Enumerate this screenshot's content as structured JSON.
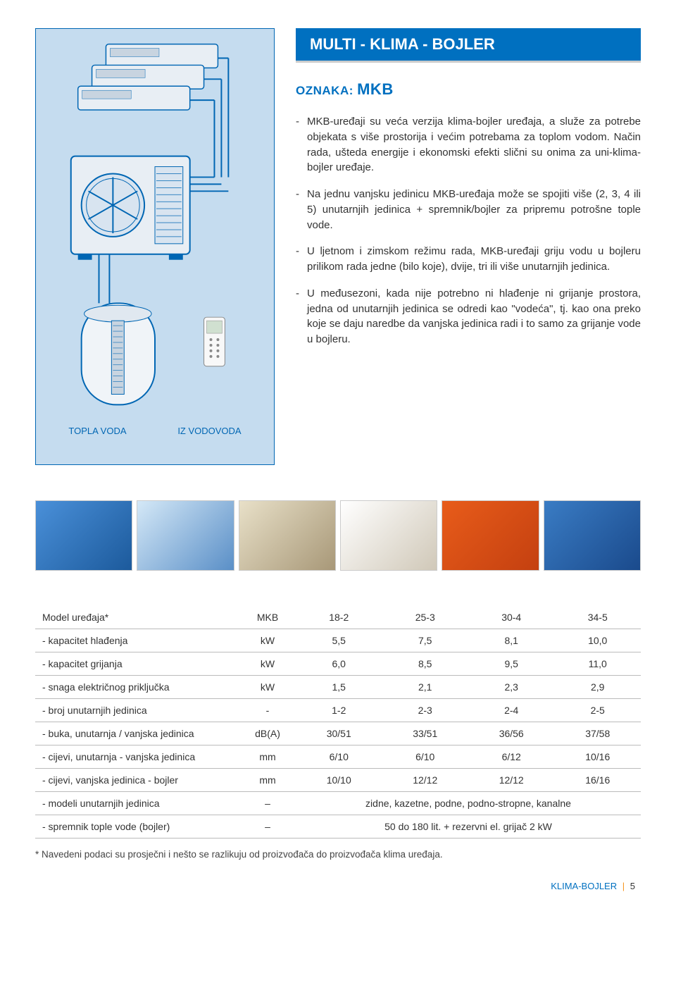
{
  "title_banner": "MULTI - KLIMA - BOJLER",
  "subtitle_prefix": "OZNAKA: ",
  "subtitle_code": "MKB",
  "bullets": [
    "MKB-uređaji su veća verzija klima-bojler uređaja, a služe za potrebe objekata s više prostorija i većim potrebama za toplom vodom. Način rada, ušteda energije i ekonomski efekti slični su onima za uni-klima-bojler uređaje.",
    "Na jednu vanjsku jedinicu MKB-uređaja može se spojiti više (2, 3, 4 ili 5) unutarnjih jedinica + spremnik/bojler za pripremu potrošne tople vode.",
    "U ljetnom i zimskom režimu rada, MKB-uređaji griju vodu u bojleru prilikom rada jedne (bilo koje), dvije, tri ili više unutarnjih jedinica.",
    "U međusezoni, kada nije potrebno ni hlađenje ni grijanje prostora, jedna od unutarnjih jedinica se odredi kao \"vodeća\", tj. kao ona preko koje se daju naredbe da vanjska jedinica radi i to samo za grijanje vode u bojleru."
  ],
  "diagram_labels": {
    "left": "TOPLA VODA",
    "right": "IZ VODOVODA"
  },
  "diagram_colors": {
    "bg": "#c5dcef",
    "border": "#0066b3",
    "unit_fill": "#e8eef4",
    "unit_stroke": "#0066b3",
    "pipe": "#0066b3"
  },
  "strip_images": [
    {
      "bg1": "#4a90d9",
      "bg2": "#1c5a9c"
    },
    {
      "bg1": "#d4e8f7",
      "bg2": "#5a8fc7"
    },
    {
      "bg1": "#e8e0c8",
      "bg2": "#a89878"
    },
    {
      "bg1": "#ffffff",
      "bg2": "#d0c8b8"
    },
    {
      "bg1": "#e85c1a",
      "bg2": "#c44010"
    },
    {
      "bg1": "#3a7cc4",
      "bg2": "#1a4a8c"
    }
  ],
  "table": {
    "header": [
      "Model uređaja*",
      "MKB",
      "18-2",
      "25-3",
      "30-4",
      "34-5"
    ],
    "rows": [
      [
        "- kapacitet hlađenja",
        "kW",
        "5,5",
        "7,5",
        "8,1",
        "10,0"
      ],
      [
        "- kapacitet grijanja",
        "kW",
        "6,0",
        "8,5",
        "9,5",
        "11,0"
      ],
      [
        "- snaga električnog priključka",
        "kW",
        "1,5",
        "2,1",
        "2,3",
        "2,9"
      ],
      [
        "- broj unutarnjih jedinica",
        "-",
        "1-2",
        "2-3",
        "2-4",
        "2-5"
      ],
      [
        "- buka, unutarnja / vanjska jedinica",
        "dB(A)",
        "30/51",
        "33/51",
        "36/56",
        "37/58"
      ],
      [
        "- cijevi, unutarnja - vanjska jedinica",
        "mm",
        "6/10",
        "6/10",
        "6/12",
        "10/16"
      ],
      [
        "- cijevi, vanjska jedinica - bojler",
        "mm",
        "10/10",
        "12/12",
        "12/12",
        "16/16"
      ]
    ],
    "span_rows": [
      [
        "- modeli unutarnjih jedinica",
        "–",
        "zidne, kazetne, podne, podno-stropne, kanalne"
      ],
      [
        "- spremnik tople vode (bojler)",
        "–",
        "50 do 180 lit. + rezervni el. grijač 2 kW"
      ]
    ]
  },
  "footnote": "* Navedeni podaci su prosječni i nešto se razlikuju od proizvođača do proizvođača klima uređaja.",
  "footer": {
    "label": "KLIMA-BOJLER",
    "page": "5"
  }
}
